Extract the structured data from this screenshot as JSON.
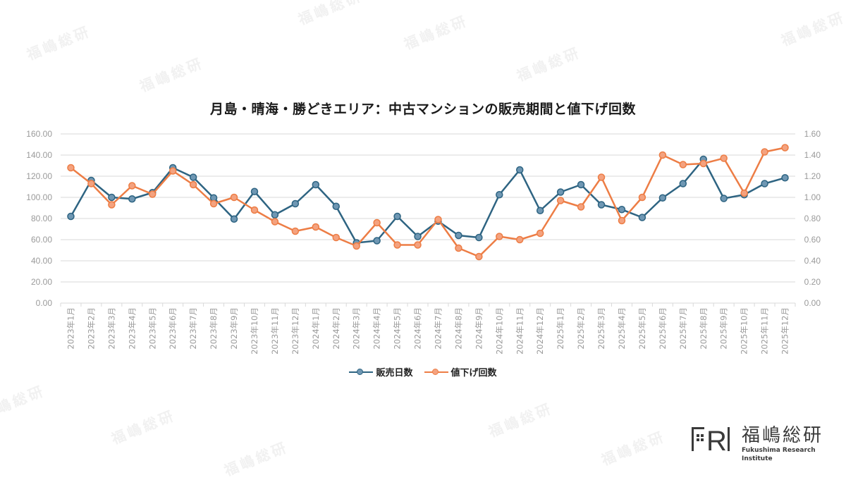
{
  "title": "月島・晴海・勝どきエリア：中古マンションの販売期間と値下げ回数",
  "watermark_text": "福嶋総研",
  "legend": {
    "series1": "販売日数",
    "series2": "値下げ回数"
  },
  "logo": {
    "mark": "FRI",
    "name_jp": "福嶋総研",
    "name_en": "Fukushima Research Institute"
  },
  "colors": {
    "series1_line": "#2e6482",
    "series1_marker": "#6f97b3",
    "series2_line": "#ed7d45",
    "series2_marker": "#f4a27f",
    "grid": "#d9d9d9",
    "axis_text": "#9a9a9a"
  },
  "chart_data": {
    "type": "line",
    "title": "月島・晴海・勝どきエリア：中古マンションの販売期間と値下げ回数",
    "xlabel": "",
    "ylabel": "",
    "y2label": "",
    "ylim": [
      0,
      160
    ],
    "y2lim": [
      0,
      1.6
    ],
    "yticks": [
      "0.00",
      "20.00",
      "40.00",
      "60.00",
      "80.00",
      "100.00",
      "120.00",
      "140.00",
      "160.00"
    ],
    "y2ticks": [
      "0.00",
      "0.20",
      "0.40",
      "0.60",
      "0.80",
      "1.00",
      "1.20",
      "1.40",
      "1.60"
    ],
    "grid": true,
    "legend_position": "bottom",
    "categories": [
      "2023年1月",
      "2023年2月",
      "2023年3月",
      "2023年4月",
      "2023年5月",
      "2023年6月",
      "2023年7月",
      "2023年8月",
      "2023年9月",
      "2023年10月",
      "2023年11月",
      "2023年12月",
      "2024年1月",
      "2024年2月",
      "2024年3月",
      "2024年4月",
      "2024年5月",
      "2024年6月",
      "2024年7月",
      "2024年8月",
      "2024年9月",
      "2024年10月",
      "2024年11月",
      "2024年12月",
      "2025年1月",
      "2025年2月",
      "2025年3月",
      "2025年4月",
      "2025年5月",
      "2025年6月",
      "2025年7月",
      "2025年8月",
      "2025年9月",
      "2025年10月",
      "2025年11月",
      "2025年12月"
    ],
    "series": [
      {
        "name": "販売日数",
        "axis": "left",
        "values": [
          82,
          116,
          100,
          98.5,
          104.5,
          128,
          119,
          99.5,
          79.5,
          105.5,
          83.5,
          94,
          112,
          91.5,
          57,
          59,
          82,
          63,
          77.5,
          64,
          62,
          102.5,
          126,
          87.5,
          105,
          112,
          93,
          88.5,
          81,
          99.5,
          113,
          136,
          99,
          102.5,
          113,
          118.5
        ]
      },
      {
        "name": "値下げ回数",
        "axis": "right",
        "values": [
          1.28,
          1.13,
          0.93,
          1.11,
          1.03,
          1.25,
          1.12,
          0.94,
          1.0,
          0.88,
          0.77,
          0.68,
          0.72,
          0.62,
          0.54,
          0.76,
          0.55,
          0.55,
          0.79,
          0.52,
          0.44,
          0.63,
          0.6,
          0.66,
          0.97,
          0.91,
          1.19,
          0.78,
          1.0,
          1.4,
          1.31,
          1.32,
          1.37,
          1.04,
          1.43,
          1.47
        ]
      }
    ]
  }
}
